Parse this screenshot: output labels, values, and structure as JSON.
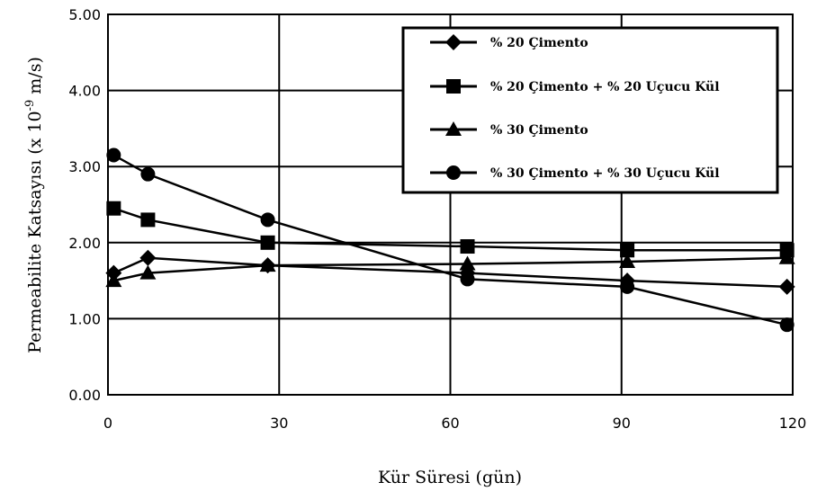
{
  "chart_data": {
    "type": "line",
    "title": "",
    "xlabel": "Kür Süresi (gün)",
    "ylabel_main": "Permeabilite Katsayısı (x 10",
    "ylabel_exp": "-9",
    "ylabel_unit": " m/s)",
    "xlim": [
      0,
      120
    ],
    "ylim": [
      0,
      5
    ],
    "xticks": [
      0,
      30,
      60,
      90,
      120
    ],
    "xtick_labels": [
      "0",
      "30",
      "60",
      "90",
      "120"
    ],
    "yticks": [
      0,
      1,
      2,
      3,
      4,
      5
    ],
    "ytick_labels": [
      "0.00",
      "1.00",
      "2.00",
      "3.00",
      "4.00",
      "5.00"
    ],
    "grid": true,
    "legend_position": "top-right",
    "series": [
      {
        "name": "% 20 Çimento",
        "marker": "diamond",
        "x": [
          1,
          7,
          28,
          63,
          91,
          119
        ],
        "y": [
          1.6,
          1.8,
          1.7,
          1.6,
          1.5,
          1.42
        ]
      },
      {
        "name": "% 20 Çimento + % 20 Uçucu Kül",
        "marker": "square",
        "x": [
          1,
          7,
          28,
          63,
          91,
          119
        ],
        "y": [
          2.45,
          2.3,
          2.0,
          1.95,
          1.9,
          1.9
        ]
      },
      {
        "name": "% 30 Çimento",
        "marker": "triangle",
        "x": [
          1,
          7,
          28,
          63,
          91,
          119
        ],
        "y": [
          1.5,
          1.6,
          1.7,
          1.72,
          1.75,
          1.8
        ]
      },
      {
        "name": "% 30 Çimento + % 30 Uçucu Kül",
        "marker": "circle",
        "x": [
          1,
          7,
          28,
          63,
          91,
          119
        ],
        "y": [
          3.15,
          2.9,
          2.3,
          1.52,
          1.42,
          0.92
        ]
      }
    ]
  }
}
